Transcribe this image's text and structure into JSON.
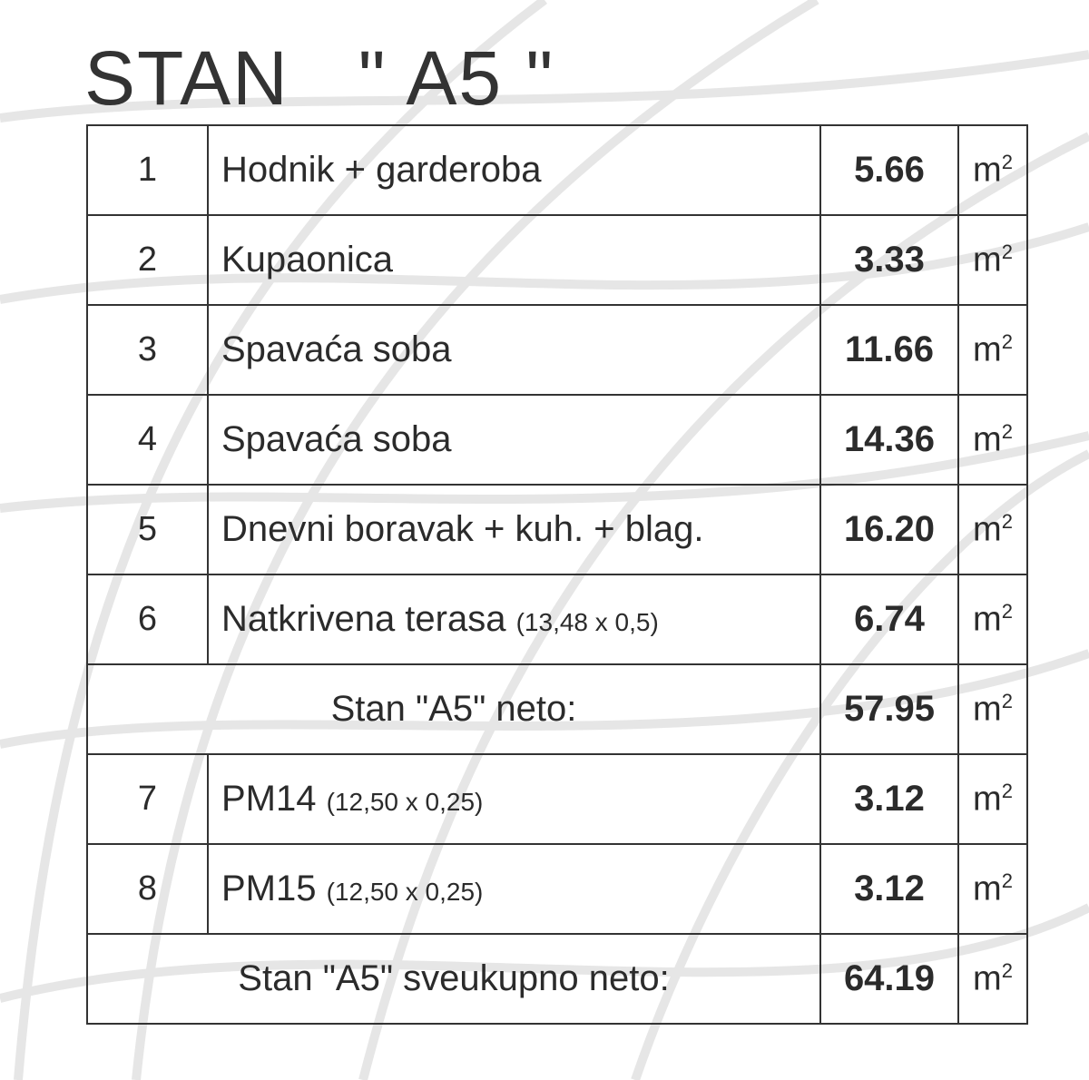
{
  "title": "STAN   \" A5 \"",
  "unit": "m",
  "unit_sup": "2",
  "rows": [
    {
      "no": "1",
      "name": "Hodnik + garderoba",
      "note": "",
      "value": "5.66"
    },
    {
      "no": "2",
      "name": "Kupaonica",
      "note": "",
      "value": "3.33"
    },
    {
      "no": "3",
      "name": "Spavaća soba",
      "note": "",
      "value": "11.66"
    },
    {
      "no": "4",
      "name": "Spavaća soba",
      "note": "",
      "value": "14.36"
    },
    {
      "no": "5",
      "name": "Dnevni boravak + kuh. + blag.",
      "note": "",
      "value": "16.20"
    },
    {
      "no": "6",
      "name": "Natkrivena terasa ",
      "note": "(13,48 x 0,5)",
      "value": "6.74"
    }
  ],
  "subtotal": {
    "label": "Stan \"A5\" neto:",
    "value": "57.95"
  },
  "rows2": [
    {
      "no": "7",
      "name": "PM14 ",
      "note": "(12,50 x 0,25)",
      "value": "3.12"
    },
    {
      "no": "8",
      "name": "PM15 ",
      "note": "(12,50 x 0,25)",
      "value": "3.12"
    }
  ],
  "total": {
    "label": "Stan \"A5\" sveukupno neto:",
    "value": "64.19"
  }
}
